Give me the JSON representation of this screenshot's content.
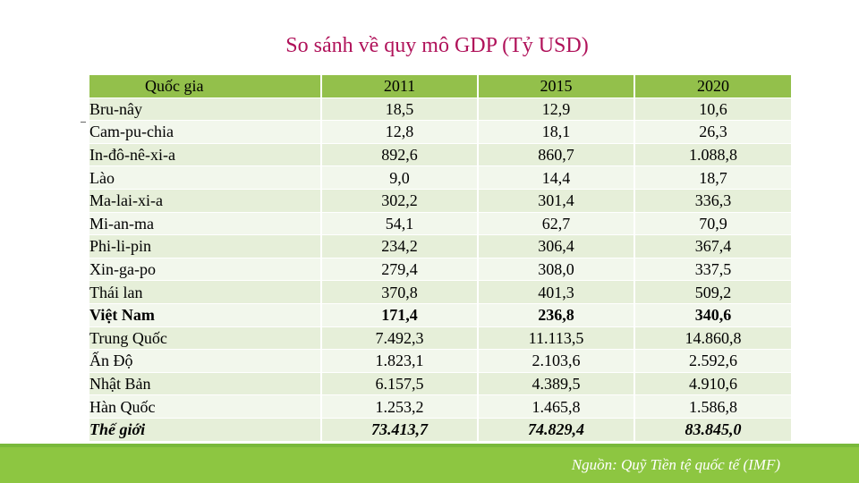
{
  "title": "So sánh về quy mô GDP (Tỷ USD)",
  "headers": [
    "Quốc gia",
    "2011",
    "2015",
    "2020"
  ],
  "rows": [
    {
      "country": "Bru-nây",
      "y2011": "18,5",
      "y2015": "12,9",
      "y2020": "10,6"
    },
    {
      "country": "Cam-pu-chia",
      "y2011": "12,8",
      "y2015": "18,1",
      "y2020": "26,3"
    },
    {
      "country": "In-đô-nê-xi-a",
      "y2011": "892,6",
      "y2015": "860,7",
      "y2020": "1.088,8"
    },
    {
      "country": "Lào",
      "y2011": "9,0",
      "y2015": "14,4",
      "y2020": "18,7"
    },
    {
      "country": "Ma-lai-xi-a",
      "y2011": "302,2",
      "y2015": "301,4",
      "y2020": "336,3"
    },
    {
      "country": "Mi-an-ma",
      "y2011": "54,1",
      "y2015": "62,7",
      "y2020": "70,9"
    },
    {
      "country": "Phi-li-pin",
      "y2011": "234,2",
      "y2015": "306,4",
      "y2020": "367,4"
    },
    {
      "country": "Xin-ga-po",
      "y2011": "279,4",
      "y2015": "308,0",
      "y2020": "337,5"
    },
    {
      "country": "Thái lan",
      "y2011": "370,8",
      "y2015": "401,3",
      "y2020": "509,2"
    },
    {
      "country": "Việt Nam",
      "y2011": "171,4",
      "y2015": "236,8",
      "y2020": "340,6"
    },
    {
      "country": "Trung Quốc",
      "y2011": "7.492,3",
      "y2015": "11.113,5",
      "y2020": "14.860,8"
    },
    {
      "country": "Ấn Độ",
      "y2011": "1.823,1",
      "y2015": "2.103,6",
      "y2020": "2.592,6"
    },
    {
      "country": "Nhật Bản",
      "y2011": "6.157,5",
      "y2015": "4.389,5",
      "y2020": "4.910,6"
    },
    {
      "country": "Hàn Quốc",
      "y2011": "1.253,2",
      "y2015": "1.465,8",
      "y2020": "1.586,8"
    },
    {
      "country": "Thế giới",
      "y2011": "73.413,7",
      "y2015": "74.829,4",
      "y2020": "83.845,0"
    }
  ],
  "source": "Nguồn: Quỹ Tiền tệ quốc tế (IMF)",
  "colors": {
    "title": "#b0125a",
    "header": "#93c04b",
    "footer": "#8dc641"
  }
}
